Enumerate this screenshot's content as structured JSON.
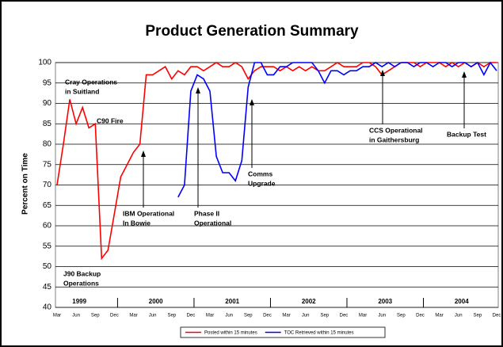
{
  "chart_data": {
    "type": "line",
    "title": "Product Generation Summary",
    "y_label": "Percent on Time",
    "categories": [
      "Mar",
      null,
      null,
      "Jun",
      null,
      null,
      "Sep",
      null,
      null,
      "Dec",
      null,
      null,
      "Mar",
      null,
      null,
      "Jun",
      null,
      null,
      "Sep",
      null,
      null,
      "Dec",
      null,
      null,
      "Mar",
      null,
      null,
      "Jun",
      null,
      null,
      "Sep",
      null,
      null,
      "Dec",
      null,
      null,
      "Mar",
      null,
      null,
      "Jun",
      null,
      null,
      "Sep",
      null,
      null,
      "Dec",
      null,
      null,
      "Mar",
      null,
      null,
      "Jun",
      null,
      null,
      "Sep",
      null,
      null,
      "Dec",
      null,
      null,
      "Mar",
      null,
      null,
      "Jun",
      null,
      null,
      "Sep",
      null,
      null,
      "Dec"
    ],
    "years": [
      "1999",
      "2000",
      "2001",
      "2002",
      "2003",
      "2004"
    ],
    "series": [
      {
        "name": "Posted within 15 minutes",
        "color": "#ff0000",
        "values": [
          70,
          80,
          91,
          85,
          89,
          84,
          85,
          52,
          54,
          63,
          72,
          75,
          78,
          80,
          97,
          97,
          98,
          99,
          96,
          98,
          97,
          99,
          99,
          98,
          99,
          100,
          99,
          99,
          100,
          99,
          96,
          98,
          99,
          99,
          99,
          98,
          99,
          98,
          99,
          98,
          99,
          98,
          98,
          99,
          100,
          99,
          99,
          99,
          100,
          100,
          99,
          97,
          98,
          99,
          100,
          100,
          100,
          99,
          100,
          100,
          100,
          99,
          100,
          99,
          100,
          99,
          100,
          99,
          100,
          100
        ]
      },
      {
        "name": "TOC Retrieved within 15 minutes",
        "color": "#0000ff",
        "values": [
          null,
          null,
          null,
          null,
          null,
          null,
          null,
          null,
          null,
          null,
          null,
          null,
          null,
          null,
          null,
          null,
          null,
          null,
          null,
          67,
          70,
          93,
          97,
          96,
          93,
          77,
          73,
          73,
          71,
          76,
          94,
          100,
          100,
          97,
          97,
          99,
          99,
          100,
          100,
          100,
          100,
          98,
          95,
          98,
          98,
          97,
          98,
          98,
          99,
          99,
          100,
          99,
          100,
          99,
          100,
          100,
          99,
          100,
          100,
          99,
          100,
          100,
          99,
          100,
          100,
          99,
          100,
          97,
          100,
          98
        ]
      }
    ],
    "ylim": [
      40,
      100
    ],
    "yticks": [
      40,
      45,
      50,
      55,
      60,
      65,
      70,
      75,
      80,
      85,
      90,
      95,
      100
    ],
    "grid": true,
    "legend": "bottom",
    "annotations": [
      {
        "lines": [
          "Cray Operations",
          "in Suitland"
        ]
      },
      {
        "lines": [
          "C90 Fire"
        ]
      },
      {
        "lines": [
          "J90 Backup",
          "Operations"
        ]
      },
      {
        "lines": [
          "IBM Operational",
          "In Bowie"
        ]
      },
      {
        "lines": [
          "Phase II",
          "Operational"
        ]
      },
      {
        "lines": [
          "Comms",
          "Upgrade"
        ]
      },
      {
        "lines": [
          "CCS Operational",
          "in Gaithersburg"
        ]
      },
      {
        "lines": [
          "Backup Test"
        ]
      }
    ]
  }
}
